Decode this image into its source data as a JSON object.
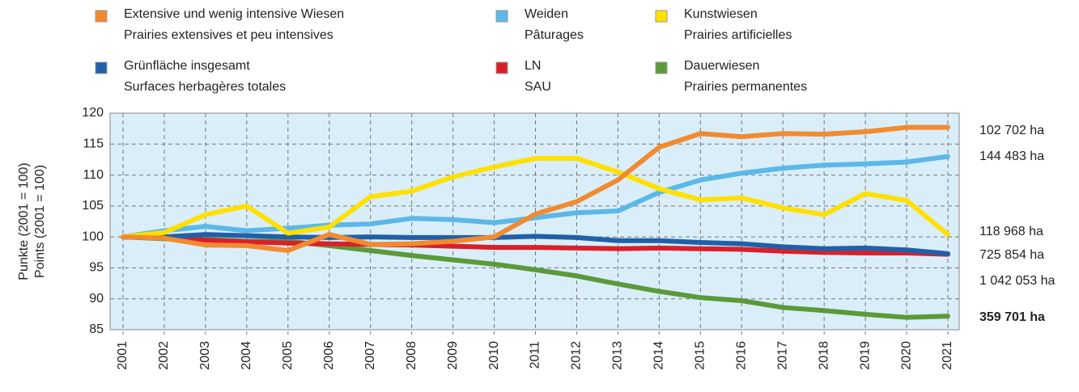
{
  "chart_data": {
    "type": "line",
    "y_label": [
      "Punkte (2001 = 100)",
      "Points (2001 = 100)"
    ],
    "categories": [
      "2001",
      "2002",
      "2003",
      "2004",
      "2005",
      "2006",
      "2007",
      "2008",
      "2009",
      "2010",
      "2011",
      "2012",
      "2013",
      "2014",
      "2015",
      "2016",
      "2017",
      "2018",
      "2019",
      "2020",
      "2021"
    ],
    "ylim": [
      85,
      120
    ],
    "yticks": [
      85,
      90,
      95,
      100,
      105,
      110,
      115,
      120
    ],
    "grid": true,
    "series": [
      {
        "name": "Dauerwiesen",
        "name_fr": "Prairies permanentes",
        "color": "#5a9a3a",
        "end_label": "359 701 ha",
        "values": [
          100,
          99.7,
          99.6,
          99.3,
          99.3,
          98.6,
          97.8,
          97,
          96.3,
          95.6,
          94.7,
          93.7,
          92.4,
          91.2,
          90.2,
          89.7,
          88.6,
          88.1,
          87.5,
          87,
          87.2
        ]
      },
      {
        "name": "LN",
        "name_fr": "SAU",
        "color": "#d9202a",
        "end_label": "1 042 053 ha",
        "values": [
          100,
          99.8,
          99.5,
          99.2,
          99,
          98.9,
          98.8,
          98.7,
          98.5,
          98.3,
          98.3,
          98.2,
          98.1,
          98.2,
          98.1,
          98,
          97.7,
          97.5,
          97.4,
          97.4,
          97.2
        ]
      },
      {
        "name": "Grünfläche insgesamt",
        "name_fr": "Surfaces herbagères totales",
        "color": "#2060a8",
        "end_label": "725 854 ha",
        "values": [
          100,
          100,
          100.4,
          100.2,
          100,
          99.9,
          100,
          99.9,
          99.9,
          99.9,
          100.1,
          99.9,
          99.4,
          99.4,
          99.1,
          98.9,
          98.4,
          98.1,
          98.2,
          97.9,
          97.3
        ]
      },
      {
        "name": "Weiden",
        "name_fr": "Pâturages",
        "color": "#5bb8e8",
        "end_label": "144 483 ha",
        "values": [
          100,
          101,
          101.7,
          101,
          101.4,
          101.9,
          102.1,
          103,
          102.8,
          102.3,
          103.1,
          103.9,
          104.2,
          107.2,
          109.2,
          110.3,
          111.1,
          111.6,
          111.8,
          112.1,
          113
        ]
      },
      {
        "name": "Kunstwiesen",
        "name_fr": "Prairies artificielles",
        "color": "#ffe000",
        "end_label": "118 968 ha",
        "values": [
          100,
          100.7,
          103.6,
          105,
          100.6,
          101.6,
          106.5,
          107.4,
          109.7,
          111.3,
          112.7,
          112.7,
          110.5,
          107.8,
          106,
          106.3,
          104.7,
          103.6,
          107,
          105.9,
          100.4
        ]
      },
      {
        "name": "Extensive und wenig intensive Wiesen",
        "name_fr": "Prairies extensives et peu intensives",
        "color": "#f28a30",
        "end_label": "102 702 ha",
        "values": [
          100,
          99.8,
          98.7,
          98.6,
          97.8,
          100.4,
          98.8,
          98.9,
          99.3,
          100,
          103.7,
          105.7,
          109.2,
          114.5,
          116.7,
          116.2,
          116.7,
          116.6,
          117,
          117.7,
          117.7
        ]
      }
    ]
  }
}
